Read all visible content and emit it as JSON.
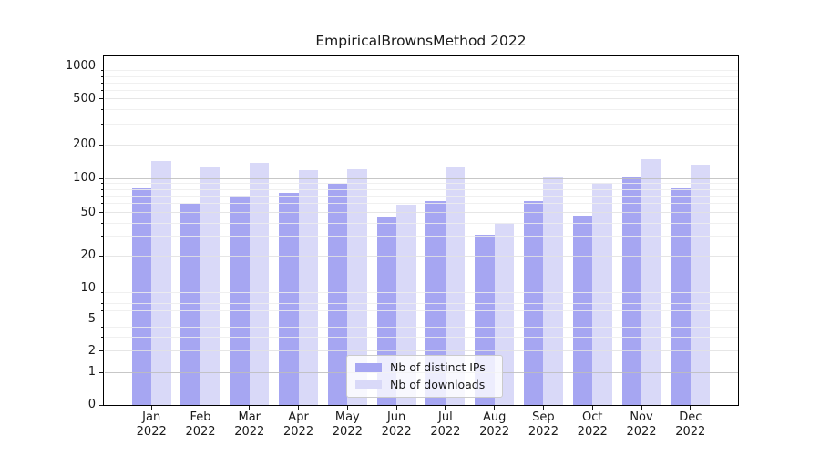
{
  "title": "EmpiricalBrownsMethod 2022",
  "chart_data": {
    "type": "bar",
    "title": "EmpiricalBrownsMethod 2022",
    "categories": [
      "Jan",
      "Feb",
      "Mar",
      "Apr",
      "May",
      "Jun",
      "Jul",
      "Aug",
      "Sep",
      "Oct",
      "Nov",
      "Dec"
    ],
    "x_year_label": "2022",
    "series": [
      {
        "name": "Nb of distinct IPs",
        "color": "#a6a6f2",
        "values": [
          82,
          60,
          71,
          75,
          89,
          45,
          63,
          31,
          63,
          47,
          102,
          81
        ]
      },
      {
        "name": "Nb of downloads",
        "color": "#d9d9f8",
        "values": [
          142,
          127,
          137,
          118,
          120,
          58,
          125,
          40,
          104,
          91,
          149,
          132
        ]
      }
    ],
    "xlabel": "",
    "ylabel": "",
    "yscale": "symlog",
    "yticks": [
      0,
      1,
      2,
      5,
      10,
      20,
      50,
      100,
      200,
      500,
      1000
    ],
    "y_minor_ticks": [
      3,
      4,
      6,
      7,
      8,
      9,
      30,
      40,
      60,
      70,
      80,
      90,
      300,
      400,
      600,
      700,
      800,
      900
    ],
    "ylim": [
      0,
      1260
    ],
    "grid": true,
    "legend_position": "lower center"
  },
  "colors": {
    "bar_distinct_ips": "#a6a6f2",
    "bar_downloads": "#d9d9f8",
    "grid_major": "#bdbdbd",
    "grid_minor": "#ededed",
    "spine": "#000000",
    "text": "#1a1a1a",
    "legend_border": "#cbcbcb"
  }
}
